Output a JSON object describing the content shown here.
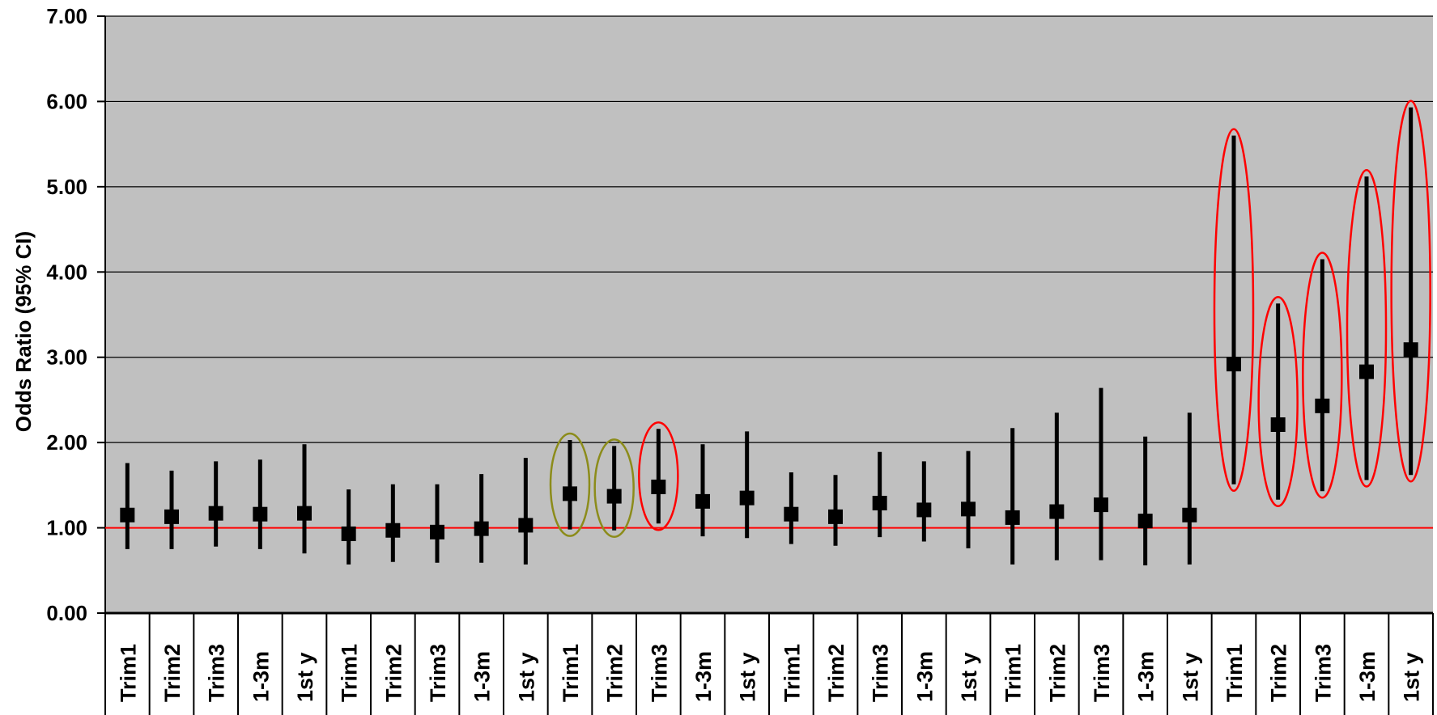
{
  "chart_data": {
    "type": "scatter",
    "title": "",
    "xlabel": "",
    "ylabel": "Odds Ratio (95% CI)",
    "ylim": [
      0,
      7
    ],
    "yticks": [
      "0.00",
      "1.00",
      "2.00",
      "3.00",
      "4.00",
      "5.00",
      "6.00",
      "7.00"
    ],
    "grid": true,
    "reference_line": 1.0,
    "categories": [
      "Trim1",
      "Trim2",
      "Trim3",
      "1-3m",
      "1st y",
      "Trim1",
      "Trim2",
      "Trim3",
      "1-3m",
      "1st y",
      "Trim1",
      "Trim2",
      "Trim3",
      "1-3m",
      "1st y",
      "Trim1",
      "Trim2",
      "Trim3",
      "1-3m",
      "1st y",
      "Trim1",
      "Trim2",
      "Trim3",
      "1-3m",
      "1st y",
      "Trim1",
      "Trim2",
      "Trim3",
      "1-3m",
      "1st y"
    ],
    "estimate": [
      1.15,
      1.13,
      1.17,
      1.16,
      1.17,
      0.93,
      0.97,
      0.95,
      0.99,
      1.03,
      1.4,
      1.37,
      1.48,
      1.31,
      1.35,
      1.16,
      1.13,
      1.29,
      1.21,
      1.22,
      1.12,
      1.19,
      1.27,
      1.08,
      1.15,
      2.92,
      2.21,
      2.43,
      2.83,
      3.09
    ],
    "lower": [
      0.75,
      0.75,
      0.78,
      0.75,
      0.7,
      0.57,
      0.6,
      0.59,
      0.59,
      0.57,
      0.98,
      0.97,
      1.05,
      0.9,
      0.88,
      0.81,
      0.79,
      0.89,
      0.84,
      0.76,
      0.57,
      0.62,
      0.62,
      0.56,
      0.57,
      1.51,
      1.33,
      1.43,
      1.56,
      1.62
    ],
    "upper": [
      1.76,
      1.67,
      1.78,
      1.8,
      1.98,
      1.45,
      1.51,
      1.51,
      1.63,
      1.82,
      2.03,
      1.96,
      2.16,
      1.98,
      2.13,
      1.65,
      1.62,
      1.89,
      1.78,
      1.9,
      2.17,
      2.35,
      2.64,
      2.07,
      2.35,
      5.6,
      3.63,
      4.15,
      5.12,
      5.93
    ],
    "highlight": [
      "",
      "",
      "",
      "",
      "",
      "",
      "",
      "",
      "",
      "",
      "olive",
      "olive",
      "red",
      "",
      "",
      "",
      "",
      "",
      "",
      "",
      "",
      "",
      "",
      "",
      "",
      "red",
      "red",
      "red",
      "red",
      "red"
    ],
    "colors": {
      "plot_bg": "#c0c0c0",
      "marker": "#000000",
      "reference_line": "#ff0000",
      "highlight_red": "#ff0000",
      "highlight_olive": "#8c8c1a"
    }
  }
}
